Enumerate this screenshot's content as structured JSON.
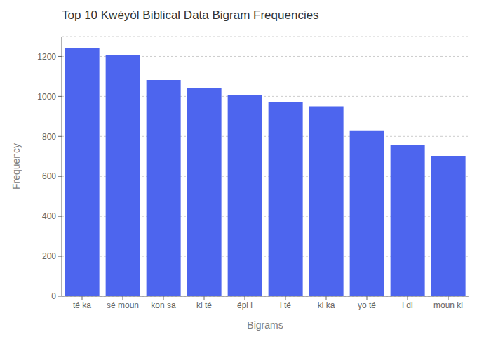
{
  "chart_data": {
    "type": "bar",
    "title": "Top 10 Kwéyòl Biblical Data Bigram Frequencies",
    "xlabel": "Bigrams",
    "ylabel": "Frequency",
    "categories": [
      "té ka",
      "sé moun",
      "kon sa",
      "ki té",
      "épi i",
      "i té",
      "ki ka",
      "yo té",
      "i di",
      "moun ki"
    ],
    "values": [
      1243,
      1208,
      1082,
      1040,
      1007,
      970,
      950,
      830,
      758,
      703
    ],
    "color": "#4d65ee",
    "ylim": [
      0,
      1300
    ],
    "yticks": [
      0,
      200,
      400,
      600,
      800,
      1000,
      1200
    ],
    "grid": true
  }
}
